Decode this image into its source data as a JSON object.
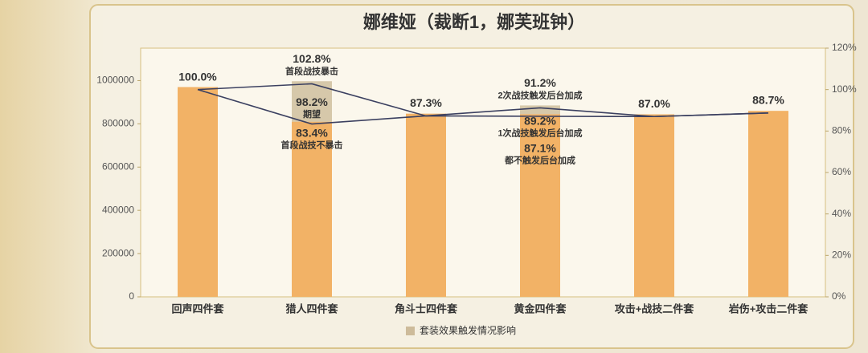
{
  "chart_data": {
    "type": "bar",
    "title": "娜维娅（裁断1，娜芙班钟）",
    "categories": [
      "回声四件套",
      "猎人四件套",
      "角斗士四件套",
      "黄金四件套",
      "攻击+战技二件套",
      "岩伤+攻击二件套"
    ],
    "values": [
      970000,
      810000,
      847000,
      845000,
      844000,
      860000
    ],
    "color": "#f2b266",
    "range_series": {
      "name": "套装效果触发情况影响",
      "color": "#cdbb9a",
      "low": [
        null,
        810000,
        null,
        845000,
        null,
        null
      ],
      "high": [
        null,
        997000,
        null,
        885000,
        null,
        null
      ]
    },
    "series": [
      {
        "color": "#3b4060",
        "axis": "y2",
        "values": [
          100.0,
          102.8,
          87.3,
          91.2,
          87.0,
          88.7
        ]
      },
      {
        "color": "#3b4060",
        "axis": "y2",
        "values": [
          100.0,
          83.4,
          87.3,
          87.1,
          87.0,
          88.7
        ]
      }
    ],
    "annotations": [
      {
        "category": "回声四件套",
        "value": 100.0,
        "label": "100.0%",
        "position": "above"
      },
      {
        "category": "猎人四件套",
        "value": 102.8,
        "label": "102.8%",
        "note": "首段战技暴击",
        "position": "above"
      },
      {
        "category": "猎人四件套",
        "value": 98.2,
        "label": "98.2%",
        "note": "期望",
        "position": "below"
      },
      {
        "category": "猎人四件套",
        "value": 83.4,
        "label": "83.4%",
        "note": "首段战技不暴击",
        "position": "below"
      },
      {
        "category": "角斗士四件套",
        "value": 87.3,
        "label": "87.3%",
        "position": "above"
      },
      {
        "category": "黄金四件套",
        "value": 91.2,
        "label": "91.2%",
        "note": "2次战技触发后台加成",
        "position": "above"
      },
      {
        "category": "黄金四件套",
        "value": 89.2,
        "label": "89.2%",
        "note": "1次战技触发后台加成",
        "position": "below"
      },
      {
        "category": "黄金四件套",
        "value": 87.1,
        "label": "87.1%",
        "note": "都不触发后台加成",
        "position": "below"
      },
      {
        "category": "攻击+战技二件套",
        "value": 87.0,
        "label": "87.0%",
        "position": "above"
      },
      {
        "category": "岩伤+攻击二件套",
        "value": 88.7,
        "label": "88.7%",
        "position": "above"
      }
    ],
    "ylim": [
      0,
      1150000
    ],
    "yticks": [
      0,
      200000,
      400000,
      600000,
      800000,
      1000000
    ],
    "y2lim": [
      0,
      120
    ],
    "y2ticks": [
      {
        "value": 0,
        "label": "0%"
      },
      {
        "value": 20,
        "label": "20%"
      },
      {
        "value": 40,
        "label": "40%"
      },
      {
        "value": 60,
        "label": "60%"
      },
      {
        "value": 80,
        "label": "80%"
      },
      {
        "value": 100,
        "label": "100%"
      },
      {
        "value": 120,
        "label": "120%"
      }
    ],
    "legend": "bottom",
    "grid": false
  }
}
